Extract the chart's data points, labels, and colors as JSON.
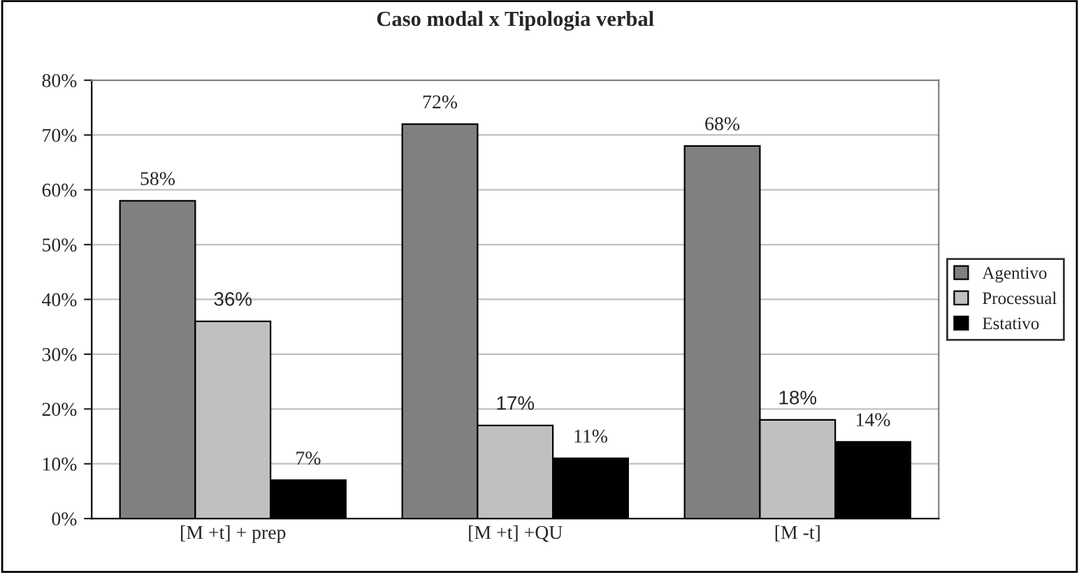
{
  "chart_data": {
    "type": "bar",
    "title": "Caso modal x Tipologia verbal",
    "categories": [
      "[M +t] + prep",
      "[M +t] +QU",
      "[M -t]"
    ],
    "series": [
      {
        "name": "Agentivo",
        "color": "#808080",
        "values": [
          58,
          72,
          68
        ],
        "value_labels": [
          "58%",
          "72%",
          "68%"
        ]
      },
      {
        "name": "Processual",
        "color": "#c0c0c0",
        "values": [
          36,
          17,
          18
        ],
        "value_labels": [
          "36%",
          "17%",
          "18%"
        ]
      },
      {
        "name": "Estativo",
        "color": "#000000",
        "values": [
          7,
          11,
          14
        ],
        "value_labels": [
          "7%",
          "11%",
          "14%"
        ]
      }
    ],
    "ylim": [
      0,
      80
    ],
    "yticks": [
      {
        "value": 0,
        "label": "0%"
      },
      {
        "value": 10,
        "label": "10%"
      },
      {
        "value": 20,
        "label": "20%"
      },
      {
        "value": 30,
        "label": "30%"
      },
      {
        "value": 40,
        "label": "40%"
      },
      {
        "value": 50,
        "label": "50%"
      },
      {
        "value": 60,
        "label": "60%"
      },
      {
        "value": 70,
        "label": "70%"
      },
      {
        "value": 80,
        "label": "80%"
      }
    ],
    "grid": "y",
    "legend": "right"
  }
}
